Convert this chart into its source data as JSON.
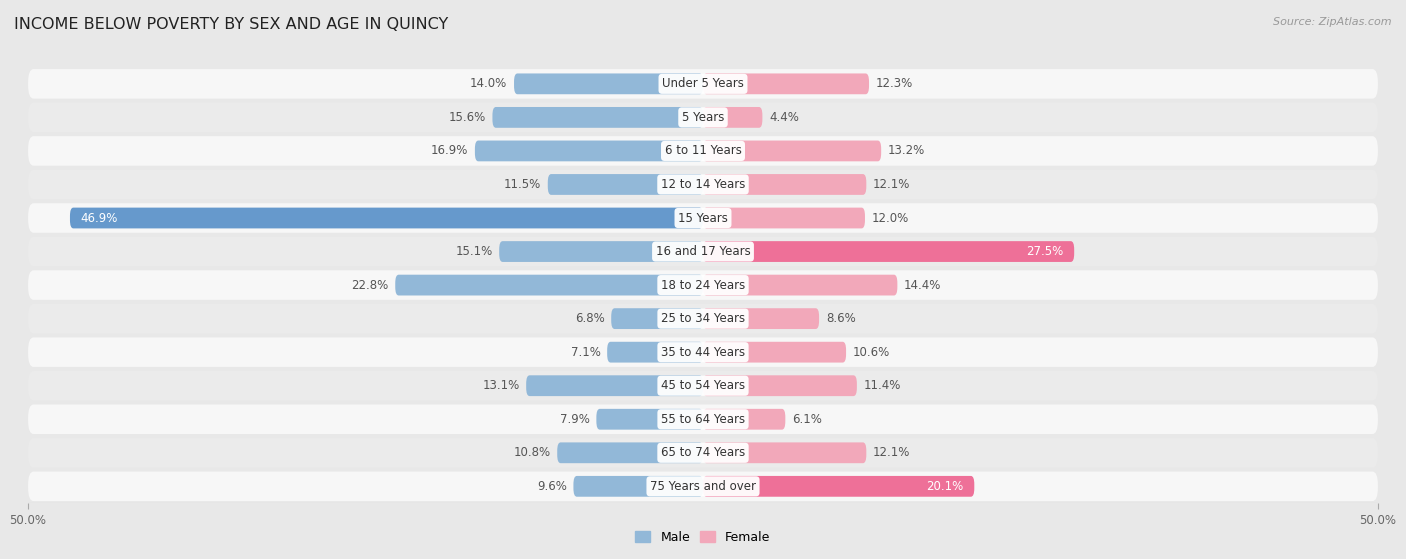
{
  "title": "INCOME BELOW POVERTY BY SEX AND AGE IN QUINCY",
  "source": "Source: ZipAtlas.com",
  "categories": [
    "Under 5 Years",
    "5 Years",
    "6 to 11 Years",
    "12 to 14 Years",
    "15 Years",
    "16 and 17 Years",
    "18 to 24 Years",
    "25 to 34 Years",
    "35 to 44 Years",
    "45 to 54 Years",
    "55 to 64 Years",
    "65 to 74 Years",
    "75 Years and over"
  ],
  "male": [
    14.0,
    15.6,
    16.9,
    11.5,
    46.9,
    15.1,
    22.8,
    6.8,
    7.1,
    13.1,
    7.9,
    10.8,
    9.6
  ],
  "female": [
    12.3,
    4.4,
    13.2,
    12.1,
    12.0,
    27.5,
    14.4,
    8.6,
    10.6,
    11.4,
    6.1,
    12.1,
    20.1
  ],
  "male_color_normal": "#92b8d8",
  "male_color_large": "#6699cc",
  "female_color_normal": "#f2a8ba",
  "female_color_large": "#ee7098",
  "bg_color": "#e8e8e8",
  "row_bg_white": "#f7f7f7",
  "row_bg_gray": "#ebebeb",
  "axis_limit": 50.0,
  "bar_height": 0.62,
  "title_fontsize": 11.5,
  "label_fontsize": 8.5,
  "cat_fontsize": 8.5,
  "tick_fontsize": 8.5,
  "source_fontsize": 8,
  "legend_fontsize": 9
}
